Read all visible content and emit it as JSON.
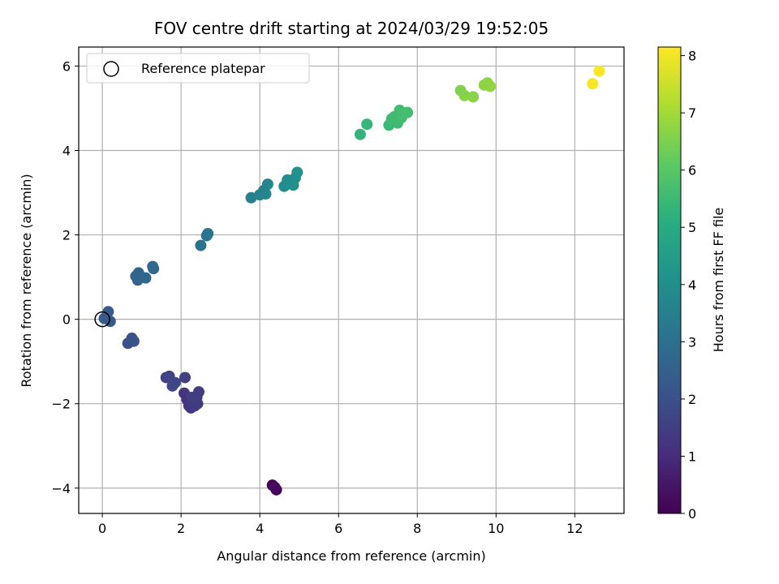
{
  "chart_data": {
    "type": "scatter",
    "title": "FOV centre drift starting at 2024/03/29 19:52:05",
    "xlabel": "Angular distance from reference (arcmin)",
    "ylabel": "Rotation from reference (arcmin)",
    "xlim": [
      -0.6,
      13.25
    ],
    "ylim": [
      -4.6,
      6.45
    ],
    "x_ticks": [
      0,
      2,
      4,
      6,
      8,
      10,
      12
    ],
    "y_ticks": [
      -4,
      -2,
      0,
      2,
      4,
      6
    ],
    "x_tick_labels": [
      "0",
      "2",
      "4",
      "6",
      "8",
      "10",
      "12"
    ],
    "y_tick_labels": [
      "−4",
      "−2",
      "0",
      "2",
      "4",
      "6"
    ],
    "grid": true,
    "colormap": "viridis",
    "colorbar": {
      "label": "Hours from first FF file",
      "range": [
        0,
        8.15
      ],
      "ticks": [
        0,
        1,
        2,
        3,
        4,
        5,
        6,
        7,
        8
      ],
      "tick_labels": [
        "0",
        "1",
        "2",
        "3",
        "4",
        "5",
        "6",
        "7",
        "8"
      ]
    },
    "legend": {
      "position": "top-left",
      "entries": [
        {
          "label": "Reference platepar",
          "marker": "open-circle"
        }
      ]
    },
    "reference_point": {
      "x": 0,
      "y": 0
    },
    "points": [
      {
        "x": 4.32,
        "y": -3.93,
        "c": 0.1
      },
      {
        "x": 4.42,
        "y": -4.04,
        "c": 0.15
      },
      {
        "x": 4.38,
        "y": -3.98,
        "c": 0.2
      },
      {
        "x": 2.08,
        "y": -1.75,
        "c": 1.2
      },
      {
        "x": 2.15,
        "y": -1.9,
        "c": 1.25
      },
      {
        "x": 2.2,
        "y": -2.05,
        "c": 1.3
      },
      {
        "x": 2.25,
        "y": -2.1,
        "c": 1.32
      },
      {
        "x": 2.3,
        "y": -1.95,
        "c": 1.35
      },
      {
        "x": 2.35,
        "y": -2.05,
        "c": 1.38
      },
      {
        "x": 2.4,
        "y": -1.85,
        "c": 1.4
      },
      {
        "x": 2.42,
        "y": -2.0,
        "c": 1.42
      },
      {
        "x": 2.45,
        "y": -1.72,
        "c": 1.45
      },
      {
        "x": 2.28,
        "y": -1.85,
        "c": 1.48
      },
      {
        "x": 2.1,
        "y": -1.38,
        "c": 1.55
      },
      {
        "x": 1.62,
        "y": -1.38,
        "c": 1.6
      },
      {
        "x": 1.7,
        "y": -1.35,
        "c": 1.62
      },
      {
        "x": 1.78,
        "y": -1.58,
        "c": 1.68
      },
      {
        "x": 1.85,
        "y": -1.5,
        "c": 1.72
      },
      {
        "x": 0.65,
        "y": -0.57,
        "c": 1.95
      },
      {
        "x": 0.75,
        "y": -0.45,
        "c": 2.0
      },
      {
        "x": 0.8,
        "y": -0.52,
        "c": 2.05
      },
      {
        "x": 0.05,
        "y": 0.02,
        "c": 2.2
      },
      {
        "x": 0.15,
        "y": 0.18,
        "c": 2.25
      },
      {
        "x": 0.2,
        "y": -0.05,
        "c": 2.3
      },
      {
        "x": 0.9,
        "y": 0.93,
        "c": 2.6
      },
      {
        "x": 0.85,
        "y": 1.02,
        "c": 2.62
      },
      {
        "x": 0.92,
        "y": 1.1,
        "c": 2.65
      },
      {
        "x": 1.1,
        "y": 0.98,
        "c": 2.7
      },
      {
        "x": 1.3,
        "y": 1.2,
        "c": 2.75
      },
      {
        "x": 1.28,
        "y": 1.25,
        "c": 2.78
      },
      {
        "x": 2.5,
        "y": 1.75,
        "c": 3.05
      },
      {
        "x": 2.65,
        "y": 1.98,
        "c": 3.1
      },
      {
        "x": 2.68,
        "y": 2.03,
        "c": 3.12
      },
      {
        "x": 3.78,
        "y": 2.88,
        "c": 3.55
      },
      {
        "x": 4.0,
        "y": 2.95,
        "c": 3.6
      },
      {
        "x": 4.1,
        "y": 3.05,
        "c": 3.62
      },
      {
        "x": 4.15,
        "y": 2.97,
        "c": 3.65
      },
      {
        "x": 4.2,
        "y": 3.2,
        "c": 3.68
      },
      {
        "x": 4.62,
        "y": 3.15,
        "c": 3.9
      },
      {
        "x": 4.7,
        "y": 3.3,
        "c": 3.95
      },
      {
        "x": 4.75,
        "y": 3.22,
        "c": 3.97
      },
      {
        "x": 4.85,
        "y": 3.18,
        "c": 4.0
      },
      {
        "x": 4.9,
        "y": 3.35,
        "c": 4.05
      },
      {
        "x": 4.95,
        "y": 3.48,
        "c": 4.1
      },
      {
        "x": 6.55,
        "y": 4.38,
        "c": 5.3
      },
      {
        "x": 6.72,
        "y": 4.62,
        "c": 5.35
      },
      {
        "x": 7.28,
        "y": 4.6,
        "c": 5.45
      },
      {
        "x": 7.35,
        "y": 4.75,
        "c": 5.5
      },
      {
        "x": 7.42,
        "y": 4.8,
        "c": 5.52
      },
      {
        "x": 7.5,
        "y": 4.65,
        "c": 5.55
      },
      {
        "x": 7.55,
        "y": 4.95,
        "c": 5.58
      },
      {
        "x": 7.6,
        "y": 4.78,
        "c": 5.6
      },
      {
        "x": 7.65,
        "y": 4.88,
        "c": 5.62
      },
      {
        "x": 7.75,
        "y": 4.9,
        "c": 5.65
      },
      {
        "x": 9.1,
        "y": 5.42,
        "c": 6.55
      },
      {
        "x": 9.2,
        "y": 5.3,
        "c": 6.6
      },
      {
        "x": 9.42,
        "y": 5.27,
        "c": 6.65
      },
      {
        "x": 9.7,
        "y": 5.55,
        "c": 6.7
      },
      {
        "x": 9.78,
        "y": 5.6,
        "c": 6.72
      },
      {
        "x": 9.85,
        "y": 5.52,
        "c": 6.75
      },
      {
        "x": 12.45,
        "y": 5.58,
        "c": 8.05
      },
      {
        "x": 12.62,
        "y": 5.88,
        "c": 8.1
      }
    ]
  }
}
